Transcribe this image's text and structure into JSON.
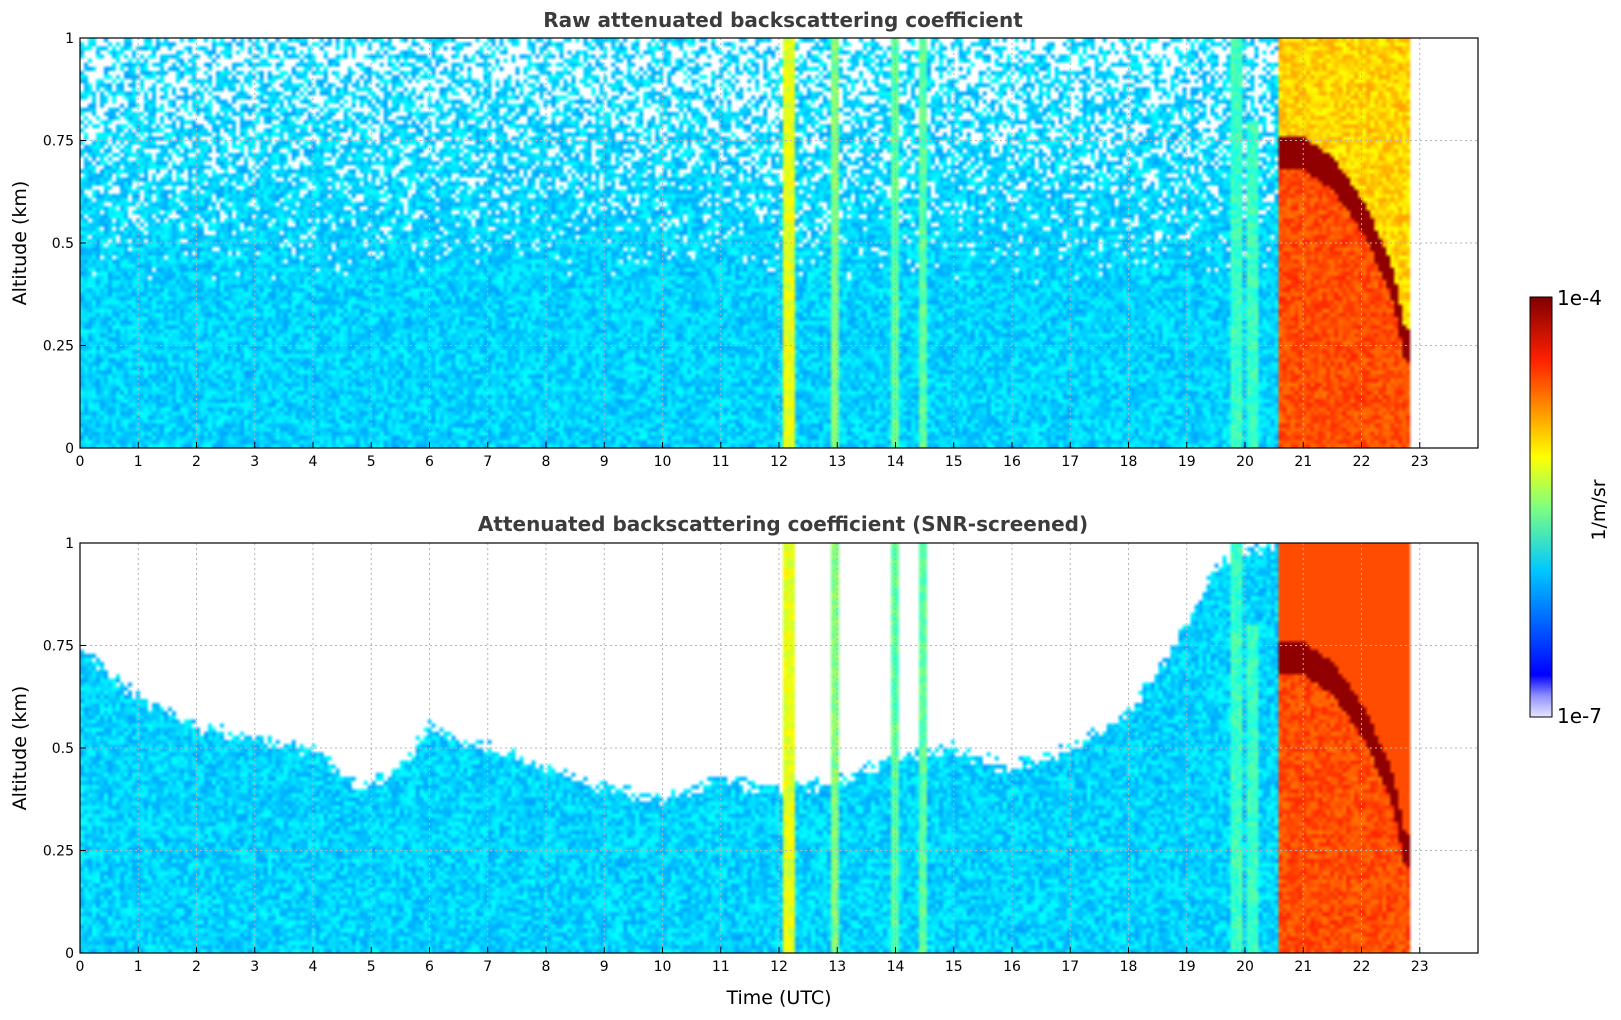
{
  "figure": {
    "xlabel": "Time (UTC)",
    "colorbar": {
      "label": "1/m/sr",
      "min_label": "1e-7",
      "max_label": "1e-4",
      "scale": "log",
      "colormap": "jet"
    }
  },
  "chart_data": [
    {
      "type": "heatmap",
      "title": "Raw attenuated backscattering coefficient",
      "ylabel": "Altitude (km)",
      "xlim": [
        0,
        24
      ],
      "ylim": [
        0,
        1
      ],
      "x_ticks": [
        "0",
        "1",
        "2",
        "3",
        "4",
        "5",
        "6",
        "7",
        "8",
        "9",
        "10",
        "11",
        "12",
        "13",
        "14",
        "15",
        "16",
        "17",
        "18",
        "19",
        "20",
        "21",
        "22",
        "23"
      ],
      "y_ticks": [
        "0",
        "0.25",
        "0.5",
        "0.75",
        "1"
      ],
      "grid": true,
      "colorbar_range": [
        1e-07,
        0.0001
      ],
      "data_end_hour": 22.8,
      "background_log10": -6.0,
      "screened": false,
      "features": [
        {
          "x_start": 12.1,
          "x_end": 12.3,
          "y_top": 1.0,
          "log10": -5.2
        },
        {
          "x_start": 12.9,
          "x_end": 13.05,
          "y_top": 1.0,
          "log10": -5.5
        },
        {
          "x_start": 13.9,
          "x_end": 14.05,
          "y_top": 1.0,
          "log10": -5.6
        },
        {
          "x_start": 14.4,
          "x_end": 14.55,
          "y_top": 1.0,
          "log10": -5.6
        },
        {
          "x_start": 19.75,
          "x_end": 19.95,
          "y_top": 1.0,
          "log10": -5.7
        },
        {
          "x_start": 20.0,
          "x_end": 20.2,
          "y_top": 0.8,
          "log10": -5.7
        },
        {
          "x_start": 20.55,
          "x_end": 22.8,
          "y_top": 1.0,
          "log10": -4.6
        }
      ],
      "cloud_layer": [
        {
          "x": 21.0,
          "y": 0.72
        },
        {
          "x": 21.5,
          "y": 0.67
        },
        {
          "x": 22.0,
          "y": 0.57
        },
        {
          "x": 22.5,
          "y": 0.42
        },
        {
          "x": 22.75,
          "y": 0.25
        }
      ]
    },
    {
      "type": "heatmap",
      "title": "Attenuated backscattering coefficient (SNR-screened)",
      "ylabel": "Altitude (km)",
      "xlim": [
        0,
        24
      ],
      "ylim": [
        0,
        1
      ],
      "x_ticks": [
        "0",
        "1",
        "2",
        "3",
        "4",
        "5",
        "6",
        "7",
        "8",
        "9",
        "10",
        "11",
        "12",
        "13",
        "14",
        "15",
        "16",
        "17",
        "18",
        "19",
        "20",
        "21",
        "22",
        "23"
      ],
      "y_ticks": [
        "0",
        "0.25",
        "0.5",
        "0.75",
        "1"
      ],
      "grid": true,
      "colorbar_range": [
        1e-07,
        0.0001
      ],
      "data_end_hour": 22.8,
      "background_log10": -6.0,
      "screened": true,
      "screen_top": [
        {
          "x": 0.0,
          "y": 0.75
        },
        {
          "x": 1.0,
          "y": 0.62
        },
        {
          "x": 2.0,
          "y": 0.55
        },
        {
          "x": 3.0,
          "y": 0.52
        },
        {
          "x": 4.0,
          "y": 0.5
        },
        {
          "x": 4.8,
          "y": 0.4
        },
        {
          "x": 5.5,
          "y": 0.45
        },
        {
          "x": 6.0,
          "y": 0.55
        },
        {
          "x": 7.0,
          "y": 0.5
        },
        {
          "x": 8.0,
          "y": 0.45
        },
        {
          "x": 9.0,
          "y": 0.4
        },
        {
          "x": 10.0,
          "y": 0.38
        },
        {
          "x": 11.0,
          "y": 0.42
        },
        {
          "x": 12.0,
          "y": 0.4
        },
        {
          "x": 13.0,
          "y": 0.42
        },
        {
          "x": 14.0,
          "y": 0.48
        },
        {
          "x": 15.0,
          "y": 0.5
        },
        {
          "x": 16.0,
          "y": 0.45
        },
        {
          "x": 17.0,
          "y": 0.5
        },
        {
          "x": 18.0,
          "y": 0.58
        },
        {
          "x": 19.0,
          "y": 0.8
        },
        {
          "x": 19.5,
          "y": 0.95
        },
        {
          "x": 20.5,
          "y": 1.0
        },
        {
          "x": 22.8,
          "y": 1.0
        }
      ],
      "features": [
        {
          "x_start": 12.1,
          "x_end": 12.3,
          "y_top": 1.0,
          "log10": -5.2
        },
        {
          "x_start": 12.9,
          "x_end": 13.05,
          "y_top": 1.0,
          "log10": -5.5
        },
        {
          "x_start": 13.9,
          "x_end": 14.05,
          "y_top": 1.0,
          "log10": -5.6
        },
        {
          "x_start": 14.4,
          "x_end": 14.55,
          "y_top": 1.0,
          "log10": -5.6
        },
        {
          "x_start": 19.75,
          "x_end": 19.95,
          "y_top": 1.0,
          "log10": -5.7
        },
        {
          "x_start": 20.0,
          "x_end": 20.2,
          "y_top": 0.8,
          "log10": -5.7
        },
        {
          "x_start": 20.55,
          "x_end": 22.8,
          "y_top": 1.0,
          "log10": -4.6
        }
      ],
      "cloud_layer": [
        {
          "x": 21.0,
          "y": 0.72
        },
        {
          "x": 21.5,
          "y": 0.67
        },
        {
          "x": 22.0,
          "y": 0.57
        },
        {
          "x": 22.5,
          "y": 0.42
        },
        {
          "x": 22.75,
          "y": 0.25
        }
      ]
    }
  ]
}
